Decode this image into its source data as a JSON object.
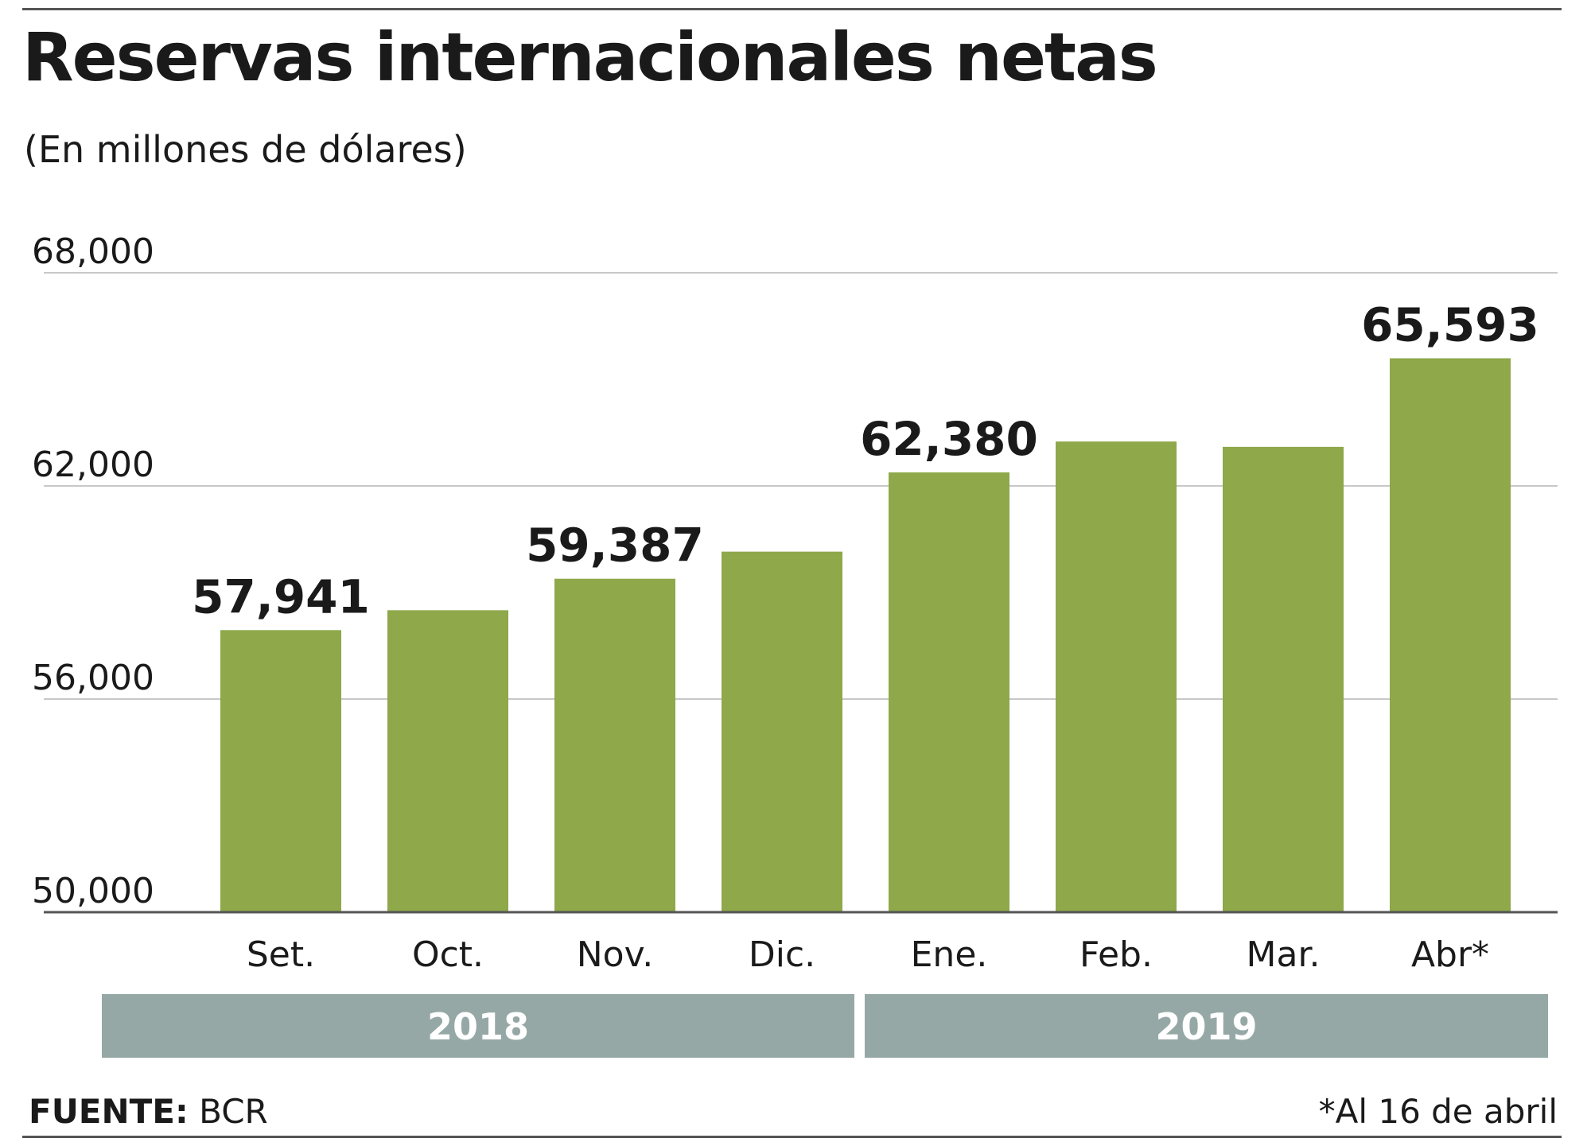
{
  "chart_data": {
    "type": "bar",
    "title": "Reservas internacionales netas",
    "subtitle": "(En millones de dólares)",
    "ylim": [
      50000,
      68000
    ],
    "yticks": [
      "50,000",
      "56,000",
      "62,000",
      "68,000"
    ],
    "ytick_values": [
      50000,
      56000,
      62000,
      68000
    ],
    "categories": [
      "Set.",
      "Oct.",
      "Nov.",
      "Dic.",
      "Ene.",
      "Feb.",
      "Mar.",
      "Abr*"
    ],
    "values": [
      57941,
      58500,
      59387,
      60150,
      62380,
      63250,
      63100,
      65593
    ],
    "data_labels": [
      "57,941",
      "",
      "59,387",
      "",
      "62,380",
      "",
      "",
      "65,593"
    ],
    "year_groups": [
      {
        "label": "2018",
        "from": 0,
        "to": 3
      },
      {
        "label": "2019",
        "from": 4,
        "to": 7
      }
    ],
    "grid": true,
    "bar_color": "#8ea84a",
    "year_band_color": "#95a8a5"
  },
  "footer": {
    "source_label": "FUENTE:",
    "source_value": "BCR",
    "note": "*Al 16 de abril"
  }
}
